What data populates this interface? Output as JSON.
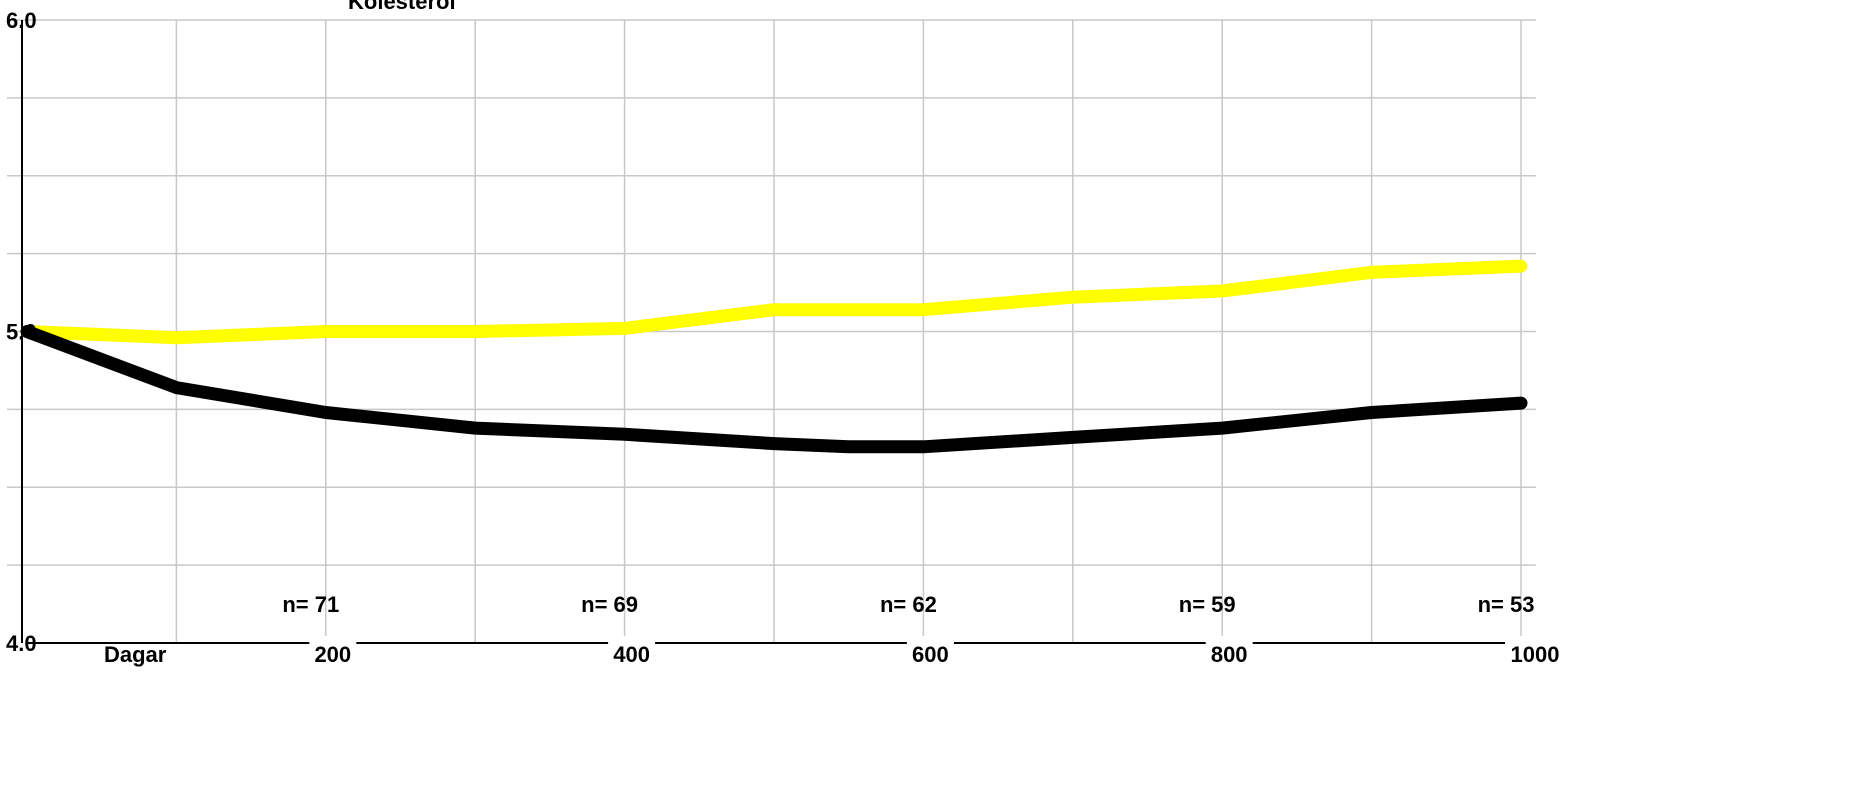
{
  "chart_data": {
    "type": "line",
    "title": "Kolesterol",
    "xlabel": "Dagar",
    "ylabel": "",
    "xlim": [
      0,
      1000
    ],
    "ylim": [
      4.0,
      6.0
    ],
    "x_ticks": [
      200,
      400,
      600,
      800,
      1000
    ],
    "x_tick_labels": [
      "200",
      "400",
      "600",
      "800",
      "1000"
    ],
    "y_ticks": [
      4.0,
      5.0,
      6.0
    ],
    "y_tick_labels": [
      "4.0",
      "5.0",
      "6.0"
    ],
    "grid": true,
    "annotations": [
      {
        "x": 200,
        "text": "n= 71"
      },
      {
        "x": 400,
        "text": "n= 69"
      },
      {
        "x": 600,
        "text": "n= 62"
      },
      {
        "x": 800,
        "text": "n= 59"
      },
      {
        "x": 1000,
        "text": "n= 53"
      }
    ],
    "x": [
      0,
      100,
      200,
      300,
      400,
      500,
      550,
      600,
      700,
      800,
      900,
      1000
    ],
    "series": [
      {
        "color": "#ffff00",
        "values": [
          5.0,
          4.98,
          5.0,
          5.0,
          5.01,
          5.07,
          5.07,
          5.07,
          5.11,
          5.13,
          5.19,
          5.21
        ]
      },
      {
        "color": "#000000",
        "values": [
          5.0,
          4.82,
          4.74,
          4.69,
          4.67,
          4.64,
          4.63,
          4.63,
          4.66,
          4.69,
          4.74,
          4.77
        ]
      }
    ]
  }
}
